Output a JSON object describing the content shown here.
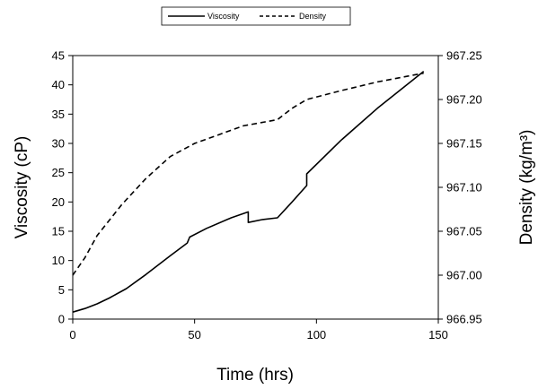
{
  "chart_data": {
    "type": "line",
    "xlabel": "Time (hrs)",
    "ylabel_left": "Viscosity (cP)",
    "ylabel_right": "Density (kg/m³)",
    "xlim": [
      0,
      150
    ],
    "xticks": [
      "0",
      "50",
      "100",
      "150"
    ],
    "ylim_left": [
      0,
      45
    ],
    "yticks_left": [
      "0",
      "5",
      "10",
      "15",
      "20",
      "25",
      "30",
      "35",
      "40",
      "45"
    ],
    "ylim_right": [
      966.95,
      967.25
    ],
    "yticks_right": [
      "966.95",
      "967.00",
      "967.05",
      "967.10",
      "967.15",
      "967.20",
      "967.25"
    ],
    "grid": false,
    "legend_position": "top-center",
    "series": [
      {
        "name": "Viscosity",
        "axis": "left",
        "style": "solid",
        "color": "#000000",
        "x": [
          0,
          5,
          10,
          15,
          22,
          30,
          40,
          47,
          48,
          55,
          65,
          72,
          72,
          78,
          84,
          90,
          96,
          96,
          110,
          125,
          144
        ],
        "y": [
          1.2,
          1.8,
          2.6,
          3.6,
          5.2,
          7.6,
          10.8,
          13.0,
          14.0,
          15.5,
          17.3,
          18.3,
          16.5,
          17.0,
          17.3,
          20.0,
          22.8,
          24.8,
          30.5,
          36.0,
          42.3
        ]
      },
      {
        "name": "Density",
        "axis": "right",
        "style": "dashed",
        "color": "#000000",
        "x": [
          0,
          5,
          10,
          20,
          30,
          40,
          50,
          60,
          70,
          84,
          90,
          96,
          110,
          125,
          144
        ],
        "y": [
          967.0,
          967.02,
          967.045,
          967.08,
          967.11,
          967.135,
          967.15,
          967.16,
          967.17,
          967.177,
          967.19,
          967.2,
          967.21,
          967.22,
          967.23
        ]
      }
    ]
  }
}
